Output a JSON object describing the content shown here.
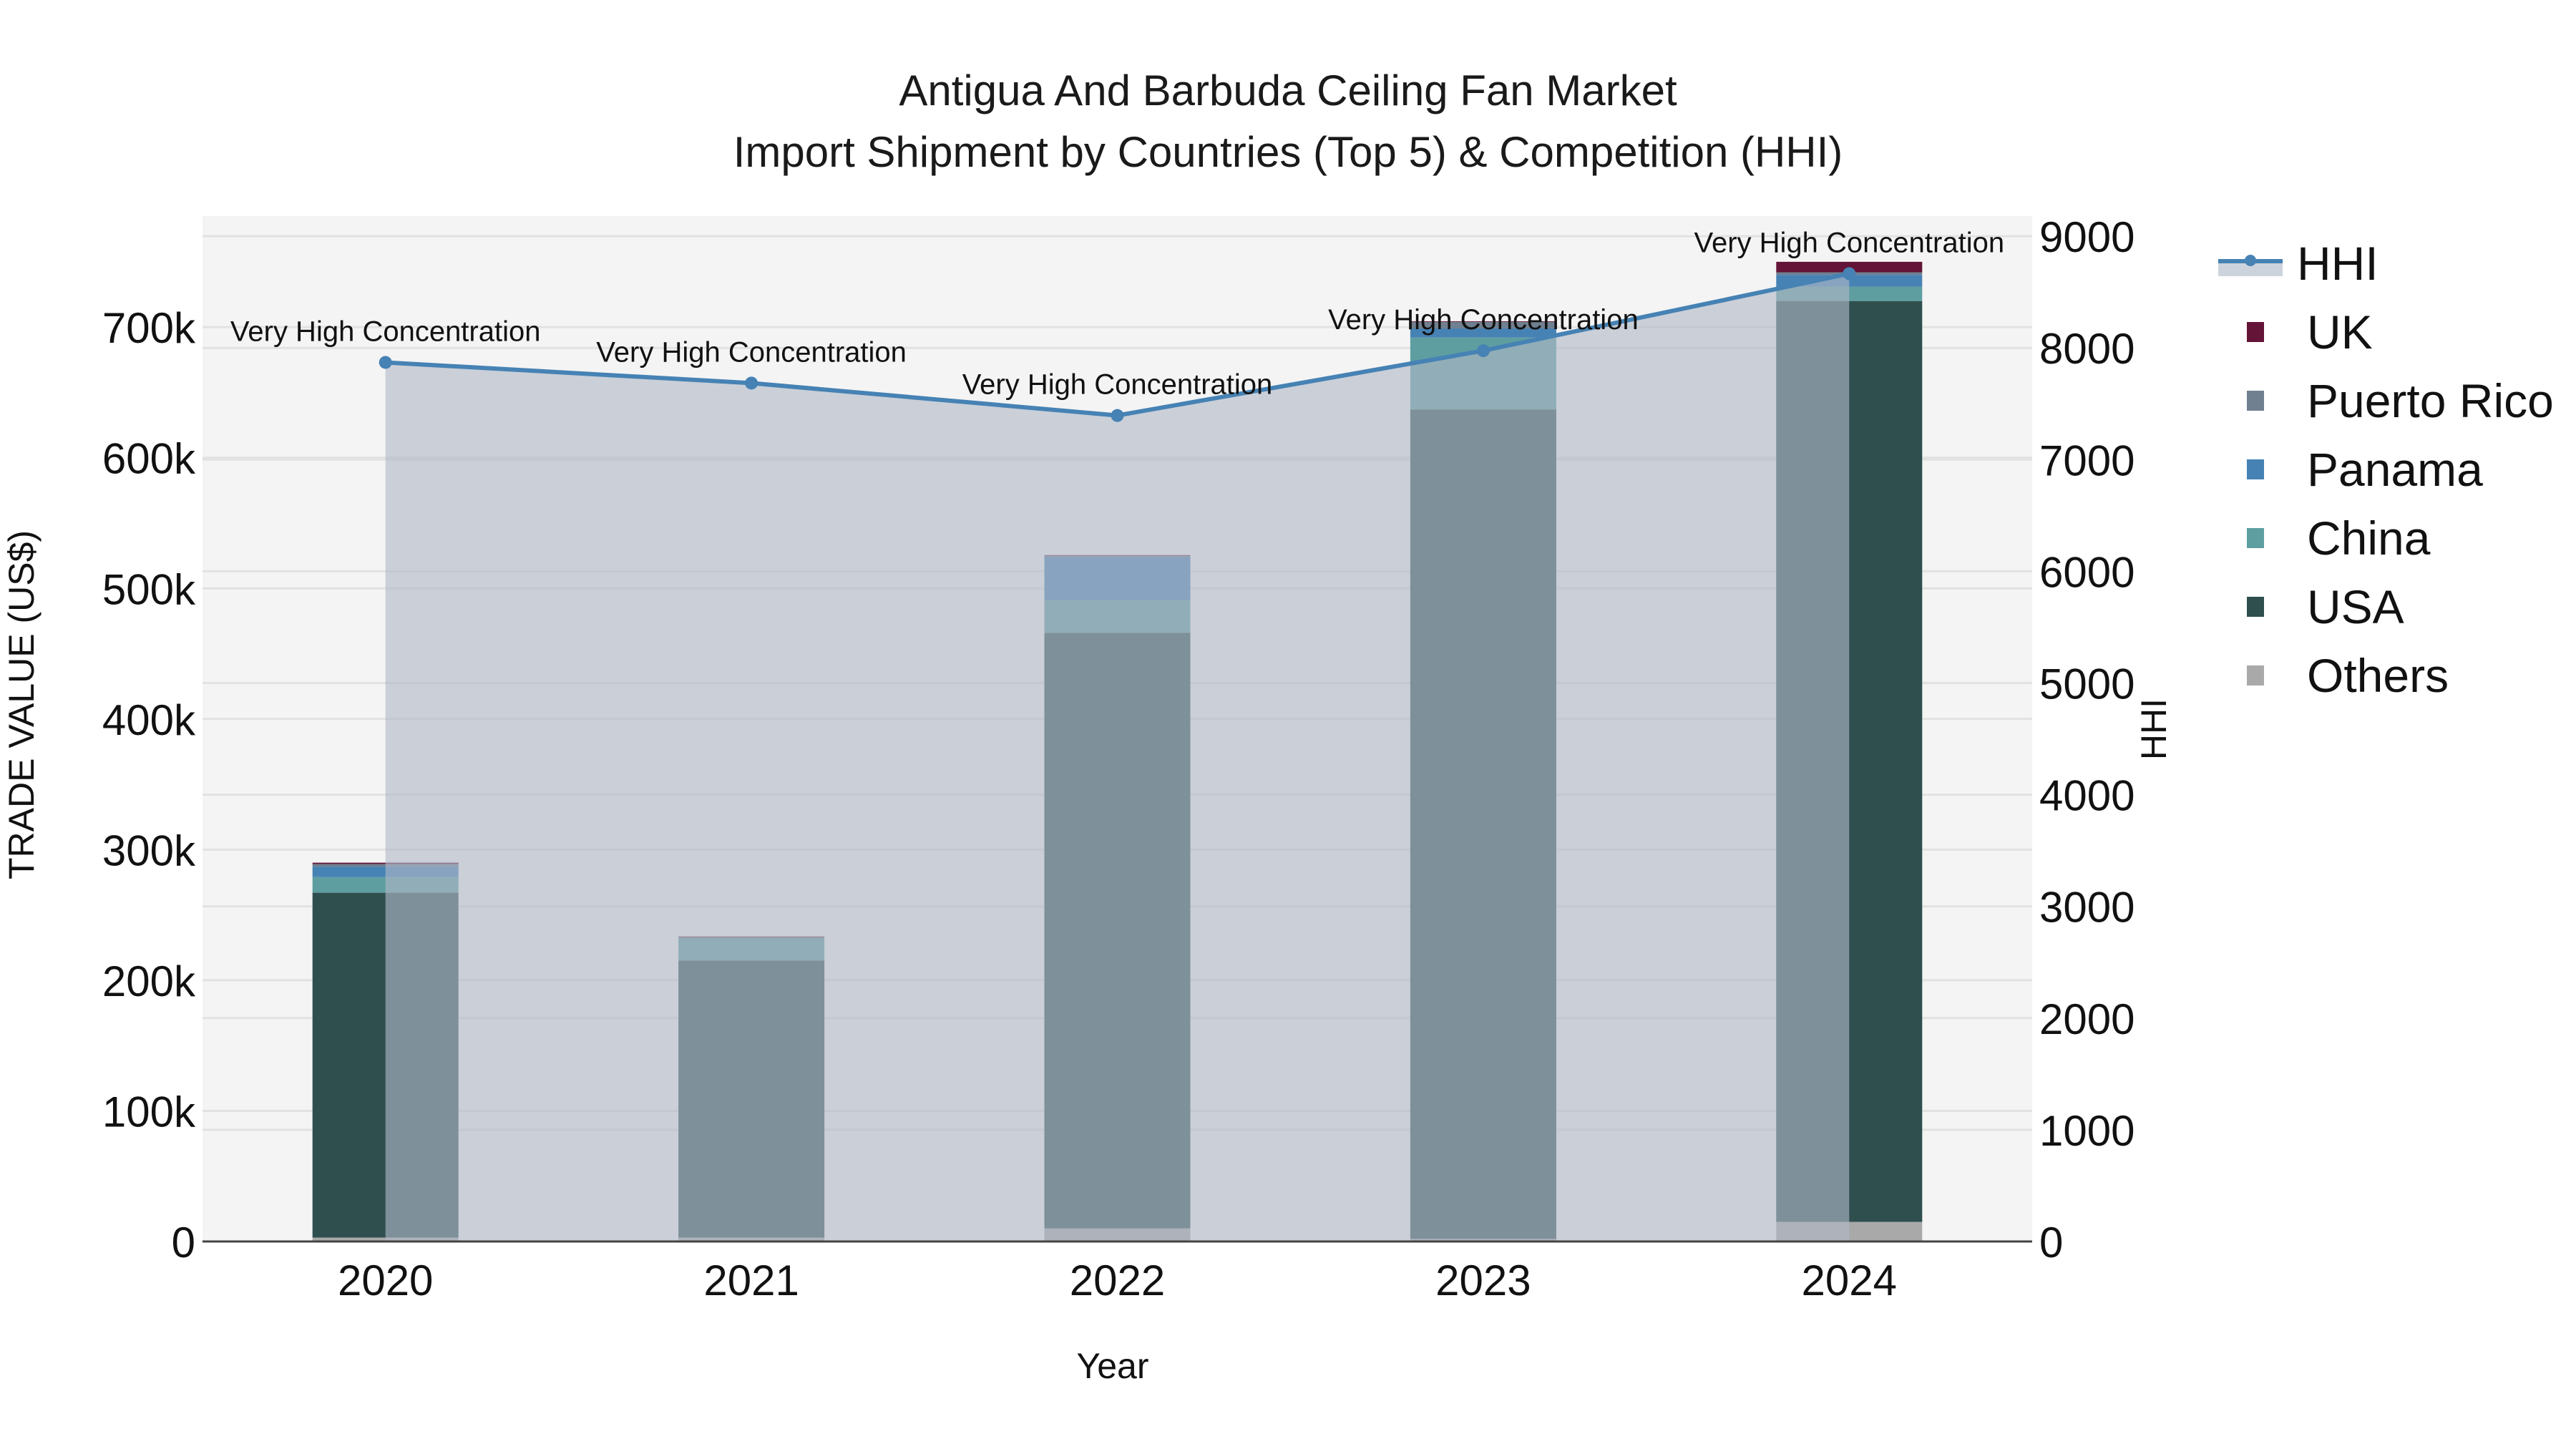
{
  "title": {
    "line1": "Antigua And Barbuda Ceiling Fan Market",
    "line2": "Import Shipment by Countries (Top 5) & Competition (HHI)"
  },
  "axes": {
    "x_title": "Year",
    "y_left_title": "TRADE VALUE (US$)",
    "y_right_title": "HHI",
    "y_left_ticks": [
      "0",
      "100k",
      "200k",
      "300k",
      "400k",
      "500k",
      "600k",
      "700k"
    ],
    "y_right_ticks": [
      "0",
      "1000",
      "2000",
      "3000",
      "4000",
      "5000",
      "6000",
      "7000",
      "8000",
      "9000"
    ],
    "x_ticks": [
      "2020",
      "2021",
      "2022",
      "2023",
      "2024"
    ]
  },
  "legend": {
    "items": [
      {
        "label": "HHI",
        "type": "line",
        "color": "#4682b4"
      },
      {
        "label": "UK",
        "type": "bar",
        "color": "#641436"
      },
      {
        "label": "Puerto Rico",
        "type": "bar",
        "color": "#708090"
      },
      {
        "label": "Panama",
        "type": "bar",
        "color": "#4682b4"
      },
      {
        "label": "China",
        "type": "bar",
        "color": "#5f9ea0"
      },
      {
        "label": "USA",
        "type": "bar",
        "color": "#2f4f4f"
      },
      {
        "label": "Others",
        "type": "bar",
        "color": "#a9a9a9"
      }
    ]
  },
  "annotations": [
    "Very High Concentration",
    "Very High Concentration",
    "Very High Concentration",
    "Very High Concentration",
    "Very High Concentration"
  ],
  "chart_data": {
    "type": "bar",
    "title": "Antigua And Barbuda Ceiling Fan Market — Import Shipment by Countries (Top 5) & Competition (HHI)",
    "xlabel": "Year",
    "ylabel": "TRADE VALUE (US$)",
    "y2label": "HHI",
    "ylim": [
      0,
      785000
    ],
    "y2lim": [
      0,
      9180
    ],
    "stacked": true,
    "categories": [
      "2020",
      "2021",
      "2022",
      "2023",
      "2024"
    ],
    "series": [
      {
        "name": "Others",
        "color": "#a9a9a9",
        "values": [
          3000,
          3000,
          10000,
          2000,
          15000
        ]
      },
      {
        "name": "USA",
        "color": "#2f4f4f",
        "values": [
          264000,
          212000,
          456000,
          635000,
          705000
        ]
      },
      {
        "name": "China",
        "color": "#5f9ea0",
        "values": [
          12000,
          17000,
          25000,
          55000,
          11000
        ]
      },
      {
        "name": "Panama",
        "color": "#4682b4",
        "values": [
          8000,
          0,
          33000,
          7000,
          9000
        ]
      },
      {
        "name": "Puerto Rico",
        "color": "#708090",
        "values": [
          2000,
          1000,
          1000,
          5000,
          2000
        ]
      },
      {
        "name": "UK",
        "color": "#641436",
        "values": [
          1000,
          500,
          500,
          500,
          8000
        ]
      }
    ],
    "line_series": {
      "name": "HHI",
      "axis": "right",
      "color": "#4682b4",
      "values": [
        7870,
        7685,
        7395,
        7975,
        8665
      ],
      "labels": [
        "Very High Concentration",
        "Very High Concentration",
        "Very High Concentration",
        "Very High Concentration",
        "Very High Concentration"
      ]
    },
    "grid": true,
    "legend_position": "right"
  }
}
